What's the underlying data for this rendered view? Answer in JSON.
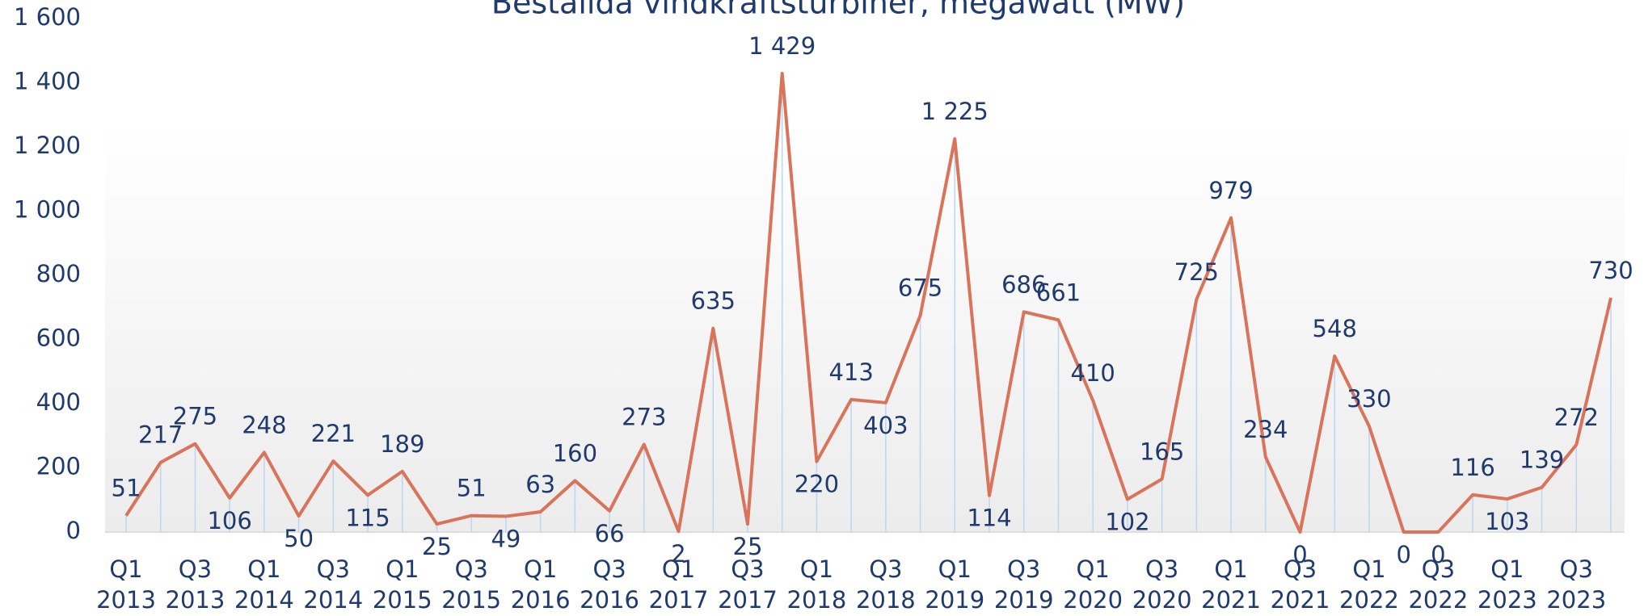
{
  "chart_data": {
    "type": "line",
    "title": "Beställda vindkraftsturbiner, megawatt (MW)",
    "categories": [
      "Q1 2013",
      null,
      "Q3 2013",
      null,
      "Q1 2014",
      null,
      "Q3 2014",
      null,
      "Q1 2015",
      null,
      "Q3 2015",
      null,
      "Q1 2016",
      null,
      "Q3 2016",
      null,
      "Q1 2017",
      null,
      "Q3 2017",
      null,
      "Q1 2018",
      null,
      "Q3 2018",
      null,
      "Q1 2019",
      null,
      "Q3 2019",
      null,
      "Q1 2020",
      null,
      "Q3 2020",
      null,
      "Q1 2021",
      null,
      "Q3 2021",
      null,
      "Q1 2022",
      null,
      "Q3 2022",
      null,
      "Q1 2023",
      null,
      "Q3 2023",
      null
    ],
    "series": [
      {
        "name": "MW",
        "color": "#d9735a",
        "values": [
          51,
          217,
          275,
          106,
          248,
          50,
          221,
          115,
          189,
          25,
          51,
          49,
          63,
          160,
          66,
          273,
          2,
          635,
          25,
          1429,
          220,
          413,
          403,
          675,
          1225,
          114,
          686,
          661,
          410,
          102,
          165,
          725,
          979,
          234,
          0,
          548,
          330,
          0,
          0,
          116,
          103,
          139,
          272,
          730
        ],
        "value_labels": [
          "51",
          "217",
          "275",
          "106",
          "248",
          "50",
          "221",
          "115",
          "189",
          "25",
          "51",
          "49",
          "63",
          "160",
          "66",
          "273",
          "2",
          "635",
          "25",
          "1 429",
          "220",
          "413",
          "403",
          "675",
          "1 225",
          "114",
          "686",
          "661",
          "410",
          "102",
          "165",
          "725",
          "979",
          "234",
          "0",
          "548",
          "330",
          "0",
          "0",
          "116",
          "103",
          "139",
          "272",
          "730"
        ]
      }
    ],
    "ylim": [
      0,
      1600
    ],
    "yticks": [
      0,
      200,
      400,
      600,
      800,
      {
        "value": 1000,
        "label": "1 000"
      },
      {
        "value": 1200,
        "label": "1 200"
      },
      {
        "value": 1400,
        "label": "1 400"
      },
      {
        "value": 1600,
        "label": "1 600"
      }
    ]
  }
}
